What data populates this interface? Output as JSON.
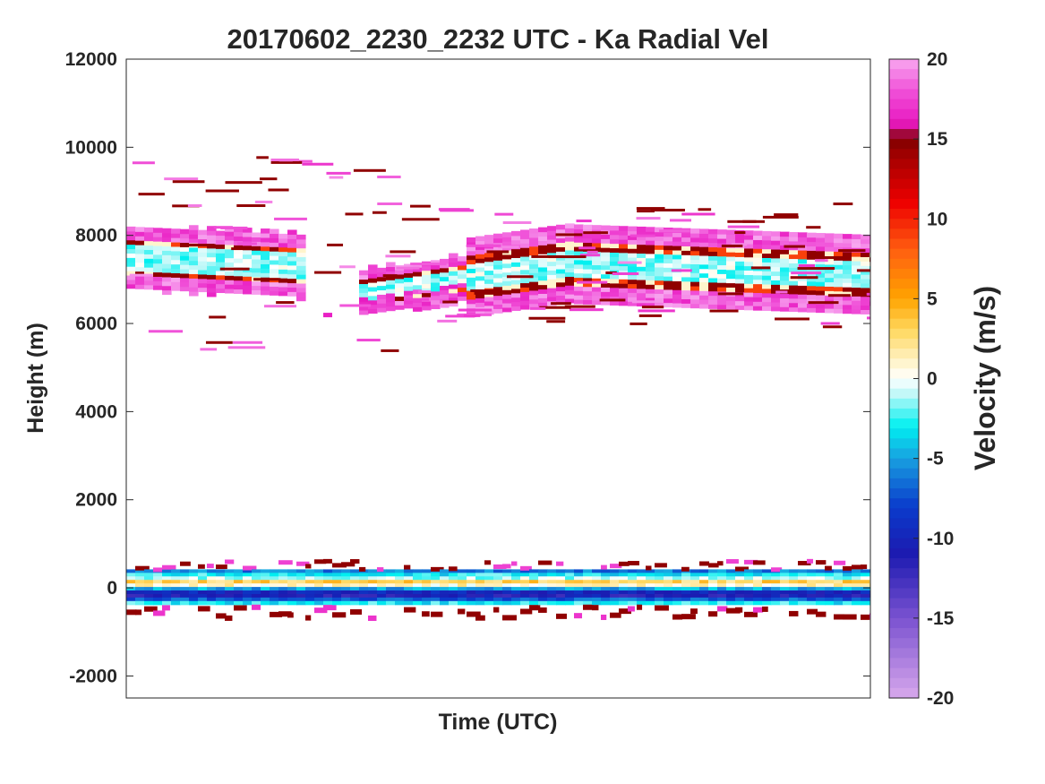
{
  "chart_data": {
    "type": "heatmap",
    "title": "20170602_2230_2232 UTC - Ka Radial Vel",
    "xlabel": "Time (UTC)",
    "ylabel": "Height (m)",
    "ylim": [
      -2500,
      12000
    ],
    "yticks": [
      -2000,
      0,
      2000,
      4000,
      6000,
      8000,
      10000,
      12000
    ],
    "ytick_labels": [
      "-2000",
      "0",
      "2000",
      "4000",
      "6000",
      "8000",
      "10000",
      "12000"
    ],
    "xticks": [],
    "colorbar": {
      "label": "Velocity (m/s)",
      "range": [
        -20,
        20
      ],
      "ticks": [
        -20,
        -15,
        -10,
        -5,
        0,
        5,
        10,
        15,
        20
      ],
      "tick_labels": [
        "-20",
        "-15",
        "-10",
        "-5",
        "0",
        "5",
        "10",
        "15",
        "20"
      ],
      "stops": [
        {
          "v": -20,
          "color": "#d8a8ec"
        },
        {
          "v": -15,
          "color": "#7a52d0"
        },
        {
          "v": -11,
          "color": "#1c1ab0"
        },
        {
          "v": -8,
          "color": "#0a3ccc"
        },
        {
          "v": -5,
          "color": "#18a0e0"
        },
        {
          "v": -3,
          "color": "#00f0f0"
        },
        {
          "v": -1,
          "color": "#bff8f8"
        },
        {
          "v": 0,
          "color": "#ffffff"
        },
        {
          "v": 1,
          "color": "#fff4cc"
        },
        {
          "v": 3,
          "color": "#ffd860"
        },
        {
          "v": 5,
          "color": "#ffa400"
        },
        {
          "v": 8,
          "color": "#ff6010"
        },
        {
          "v": 11,
          "color": "#ee0000"
        },
        {
          "v": 14,
          "color": "#a00000"
        },
        {
          "v": 15,
          "color": "#800000"
        },
        {
          "v": 16,
          "color": "#e818c0"
        },
        {
          "v": 18,
          "color": "#f050d8"
        },
        {
          "v": 20,
          "color": "#f8a8f0"
        }
      ]
    },
    "features": [
      {
        "name": "upper cloud layer, early",
        "x_frac": [
          0.0,
          0.23
        ],
        "height_m": [
          6800,
          8200
        ],
        "velocity_ms": [
          -3,
          20
        ]
      },
      {
        "name": "upper cloud layer, late",
        "x_frac": [
          0.31,
          1.0
        ],
        "height_m": [
          6200,
          8000
        ],
        "velocity_ms": [
          -3,
          20
        ]
      },
      {
        "name": "surface clutter band",
        "x_frac": [
          0.0,
          1.0
        ],
        "height_m": [
          -500,
          400
        ],
        "velocity_ms": [
          -11,
          15
        ]
      }
    ]
  }
}
